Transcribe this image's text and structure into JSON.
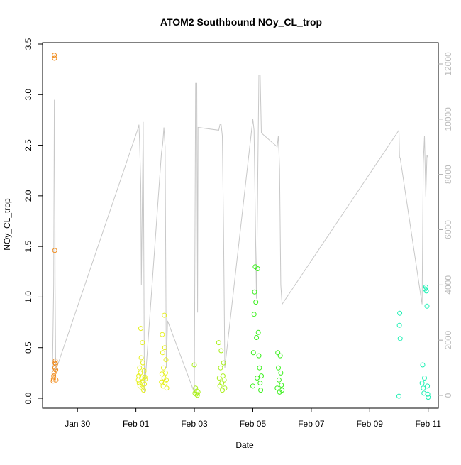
{
  "chart_data": {
    "type": "scatter",
    "title": "ATOM2 Southbound NOy_CL_trop",
    "xlabel": "Date",
    "ylabel": "NOy_CL_trop",
    "xlim": [
      "2017-01-29T00:00",
      "2017-02-11T06:00"
    ],
    "ylim": [
      0,
      3.5
    ],
    "y2lim": [
      0,
      12000
    ],
    "x_ticks": [
      {
        "date": "2017-01-30",
        "label": "Jan 30"
      },
      {
        "date": "2017-02-01",
        "label": "Feb 01"
      },
      {
        "date": "2017-02-03",
        "label": "Feb 03"
      },
      {
        "date": "2017-02-05",
        "label": "Feb 05"
      },
      {
        "date": "2017-02-07",
        "label": "Feb 07"
      },
      {
        "date": "2017-02-09",
        "label": "Feb 09"
      },
      {
        "date": "2017-02-11",
        "label": "Feb 11"
      }
    ],
    "y_ticks": [
      "0.0",
      "0.5",
      "1.0",
      "1.5",
      "2.0",
      "2.5",
      "3.0",
      "3.5"
    ],
    "y2_ticks": [
      "0",
      "2000",
      "4000",
      "6000",
      "8000",
      "10000",
      "12000"
    ],
    "grid": false,
    "legend": "none",
    "altitude_color": "#c8c8c8",
    "series": [
      {
        "color": "#f08c1e",
        "x": [
          "2017-01-29T04:00",
          "2017-01-29T04:15",
          "2017-01-29T04:30",
          "2017-01-29T04:45",
          "2017-01-29T05:00",
          "2017-01-29T05:10",
          "2017-01-29T05:20",
          "2017-01-29T05:30",
          "2017-01-29T05:40",
          "2017-01-29T05:50",
          "2017-01-29T06:00",
          "2017-01-29T06:10",
          "2017-01-29T06:20"
        ],
        "y": [
          0.17,
          0.19,
          0.22,
          0.25,
          3.39,
          3.36,
          1.46,
          0.3,
          0.35,
          0.37,
          0.34,
          0.28,
          0.18
        ]
      },
      {
        "color": "#e6f01e",
        "x": [
          "2017-02-01T02:00",
          "2017-02-01T02:20",
          "2017-02-01T02:40",
          "2017-02-01T03:00",
          "2017-02-01T03:20",
          "2017-02-01T03:40",
          "2017-02-01T04:00",
          "2017-02-01T04:20",
          "2017-02-01T04:40",
          "2017-02-01T05:00",
          "2017-02-01T05:20",
          "2017-02-01T05:40",
          "2017-02-01T06:00",
          "2017-02-01T06:20",
          "2017-02-01T06:40",
          "2017-02-01T07:00",
          "2017-02-01T07:20",
          "2017-02-01T07:40",
          "2017-02-01T21:00",
          "2017-02-01T21:20",
          "2017-02-01T21:40",
          "2017-02-01T22:00",
          "2017-02-01T22:20",
          "2017-02-01T22:40",
          "2017-02-01T23:00",
          "2017-02-01T23:20",
          "2017-02-01T23:40",
          "2017-02-02T00:00",
          "2017-02-02T00:20",
          "2017-02-02T00:40",
          "2017-02-02T01:00",
          "2017-02-02T01:20"
        ],
        "y": [
          0.18,
          0.22,
          0.15,
          0.3,
          0.12,
          0.25,
          0.69,
          0.4,
          0.2,
          0.1,
          0.55,
          0.35,
          0.17,
          0.08,
          0.27,
          0.14,
          0.21,
          0.19,
          0.16,
          0.24,
          0.63,
          0.45,
          0.12,
          0.3,
          0.2,
          0.82,
          0.5,
          0.15,
          0.25,
          0.38,
          0.18,
          0.1
        ]
      },
      {
        "color": "#aaf01e",
        "x": [
          "2017-02-03T00:00",
          "2017-02-03T00:30",
          "2017-02-03T01:00",
          "2017-02-03T01:30",
          "2017-02-03T02:00",
          "2017-02-03T02:30",
          "2017-02-03T03:00",
          "2017-02-03T20:00",
          "2017-02-03T20:30",
          "2017-02-03T21:00",
          "2017-02-03T21:30",
          "2017-02-03T22:00",
          "2017-02-03T22:30",
          "2017-02-03T23:00",
          "2017-02-03T23:30",
          "2017-02-04T00:00",
          "2017-02-04T00:30",
          "2017-02-04T01:00"
        ],
        "y": [
          0.33,
          0.05,
          0.1,
          0.04,
          0.07,
          0.03,
          0.06,
          0.55,
          0.2,
          0.12,
          0.3,
          0.47,
          0.15,
          0.08,
          0.22,
          0.35,
          0.18,
          0.1
        ]
      },
      {
        "color": "#3cf01e",
        "x": [
          "2017-02-05T00:00",
          "2017-02-05T00:30",
          "2017-02-05T01:00",
          "2017-02-05T01:30",
          "2017-02-05T02:00",
          "2017-02-05T02:30",
          "2017-02-05T03:00",
          "2017-02-05T03:30",
          "2017-02-05T04:00",
          "2017-02-05T04:30",
          "2017-02-05T05:00",
          "2017-02-05T05:30",
          "2017-02-05T06:00",
          "2017-02-05T06:30",
          "2017-02-05T07:00",
          "2017-02-05T20:00",
          "2017-02-05T20:30",
          "2017-02-05T21:00",
          "2017-02-05T21:30",
          "2017-02-05T22:00",
          "2017-02-05T22:30",
          "2017-02-05T23:00",
          "2017-02-05T23:30",
          "2017-02-06T00:00"
        ],
        "y": [
          0.12,
          0.45,
          0.83,
          1.05,
          1.3,
          0.95,
          0.6,
          0.2,
          1.28,
          0.65,
          0.42,
          0.3,
          0.15,
          0.08,
          0.22,
          0.1,
          0.45,
          0.3,
          0.18,
          0.06,
          0.42,
          0.25,
          0.13,
          0.08
        ]
      },
      {
        "color": "#1ef0b4",
        "x": [
          "2017-02-10T00:00",
          "2017-02-10T00:20",
          "2017-02-10T00:40",
          "2017-02-10T01:00",
          "2017-02-10T19:00",
          "2017-02-10T19:30",
          "2017-02-10T20:00",
          "2017-02-10T20:30",
          "2017-02-10T21:00",
          "2017-02-10T21:30",
          "2017-02-10T22:00",
          "2017-02-10T22:30",
          "2017-02-10T23:00",
          "2017-02-10T23:20",
          "2017-02-10T23:40",
          "2017-02-11T00:00"
        ],
        "y": [
          0.02,
          0.72,
          0.84,
          0.59,
          0.15,
          0.33,
          0.1,
          0.05,
          0.2,
          1.08,
          1.1,
          1.06,
          0.91,
          0.12,
          0.04,
          0.01
        ]
      }
    ],
    "altitude": {
      "x": [
        "2017-01-29T03:30",
        "2017-01-29T04:30",
        "2017-01-29T05:00",
        "2017-01-29T05:20",
        "2017-01-29T05:40",
        "2017-01-29T06:10",
        "2017-02-01T02:00",
        "2017-02-01T02:30",
        "2017-02-01T03:00",
        "2017-02-01T04:00",
        "2017-02-01T04:30",
        "2017-02-01T06:00",
        "2017-02-01T07:00",
        "2017-02-01T21:00",
        "2017-02-01T22:00",
        "2017-02-01T23:00",
        "2017-02-02T00:00",
        "2017-02-02T01:00",
        "2017-02-02T02:00",
        "2017-02-03T00:00",
        "2017-02-03T01:00",
        "2017-02-03T02:00",
        "2017-02-03T02:40",
        "2017-02-03T03:00",
        "2017-02-03T20:00",
        "2017-02-03T21:00",
        "2017-02-03T22:00",
        "2017-02-03T23:00",
        "2017-02-04T00:00",
        "2017-02-04T01:00",
        "2017-02-05T00:00",
        "2017-02-05T01:00",
        "2017-02-05T03:00",
        "2017-02-05T05:00",
        "2017-02-05T06:00",
        "2017-02-05T07:00",
        "2017-02-05T20:00",
        "2017-02-05T21:00",
        "2017-02-05T22:00",
        "2017-02-05T23:00",
        "2017-02-06T00:00",
        "2017-02-10T00:00",
        "2017-02-10T00:30",
        "2017-02-10T01:00",
        "2017-02-10T19:00",
        "2017-02-10T20:00",
        "2017-02-10T21:00",
        "2017-02-10T22:00",
        "2017-02-10T23:00",
        "2017-02-11T00:00"
      ],
      "y": [
        900,
        4000,
        10700,
        10000,
        4000,
        900,
        9700,
        9800,
        9200,
        7600,
        4000,
        9900,
        100,
        8800,
        9100,
        9700,
        9000,
        1000,
        2700,
        100,
        11300,
        11300,
        3000,
        9700,
        9600,
        9800,
        9800,
        9400,
        6000,
        1000,
        10000,
        9600,
        3500,
        11600,
        11600,
        9500,
        9000,
        9400,
        8200,
        4000,
        3300,
        9600,
        8600,
        8600,
        3300,
        8400,
        9400,
        7200,
        8700,
        8600
      ]
    }
  }
}
